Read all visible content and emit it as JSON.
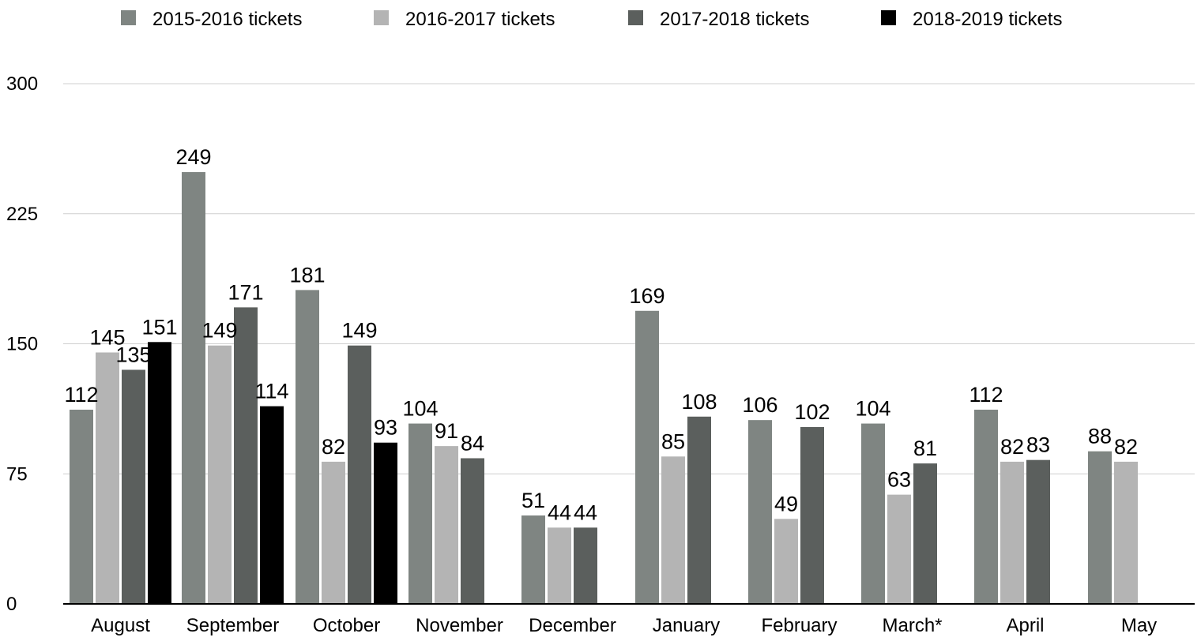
{
  "chart_data": {
    "type": "bar",
    "title": "",
    "xlabel": "",
    "ylabel": "",
    "ylim": [
      0,
      300
    ],
    "yticks": [
      0,
      75,
      150,
      225,
      300
    ],
    "grid": true,
    "legend_position": "top",
    "categories": [
      "August",
      "September",
      "October",
      "November",
      "December",
      "January",
      "February",
      "March*",
      "April",
      "May"
    ],
    "series": [
      {
        "name": "2015-2016 tickets",
        "color": "#7f8582",
        "values": [
          112,
          249,
          181,
          104,
          51,
          169,
          106,
          104,
          112,
          88
        ]
      },
      {
        "name": "2016-2017 tickets",
        "color": "#b4b4b4",
        "values": [
          145,
          149,
          82,
          91,
          44,
          85,
          49,
          63,
          82,
          82
        ]
      },
      {
        "name": "2017-2018 tickets",
        "color": "#5b5f5d",
        "values": [
          135,
          171,
          149,
          84,
          44,
          108,
          102,
          81,
          83,
          null
        ]
      },
      {
        "name": "2018-2019 tickets",
        "color": "#000000",
        "values": [
          151,
          114,
          93,
          null,
          null,
          null,
          null,
          null,
          null,
          null
        ]
      }
    ]
  }
}
